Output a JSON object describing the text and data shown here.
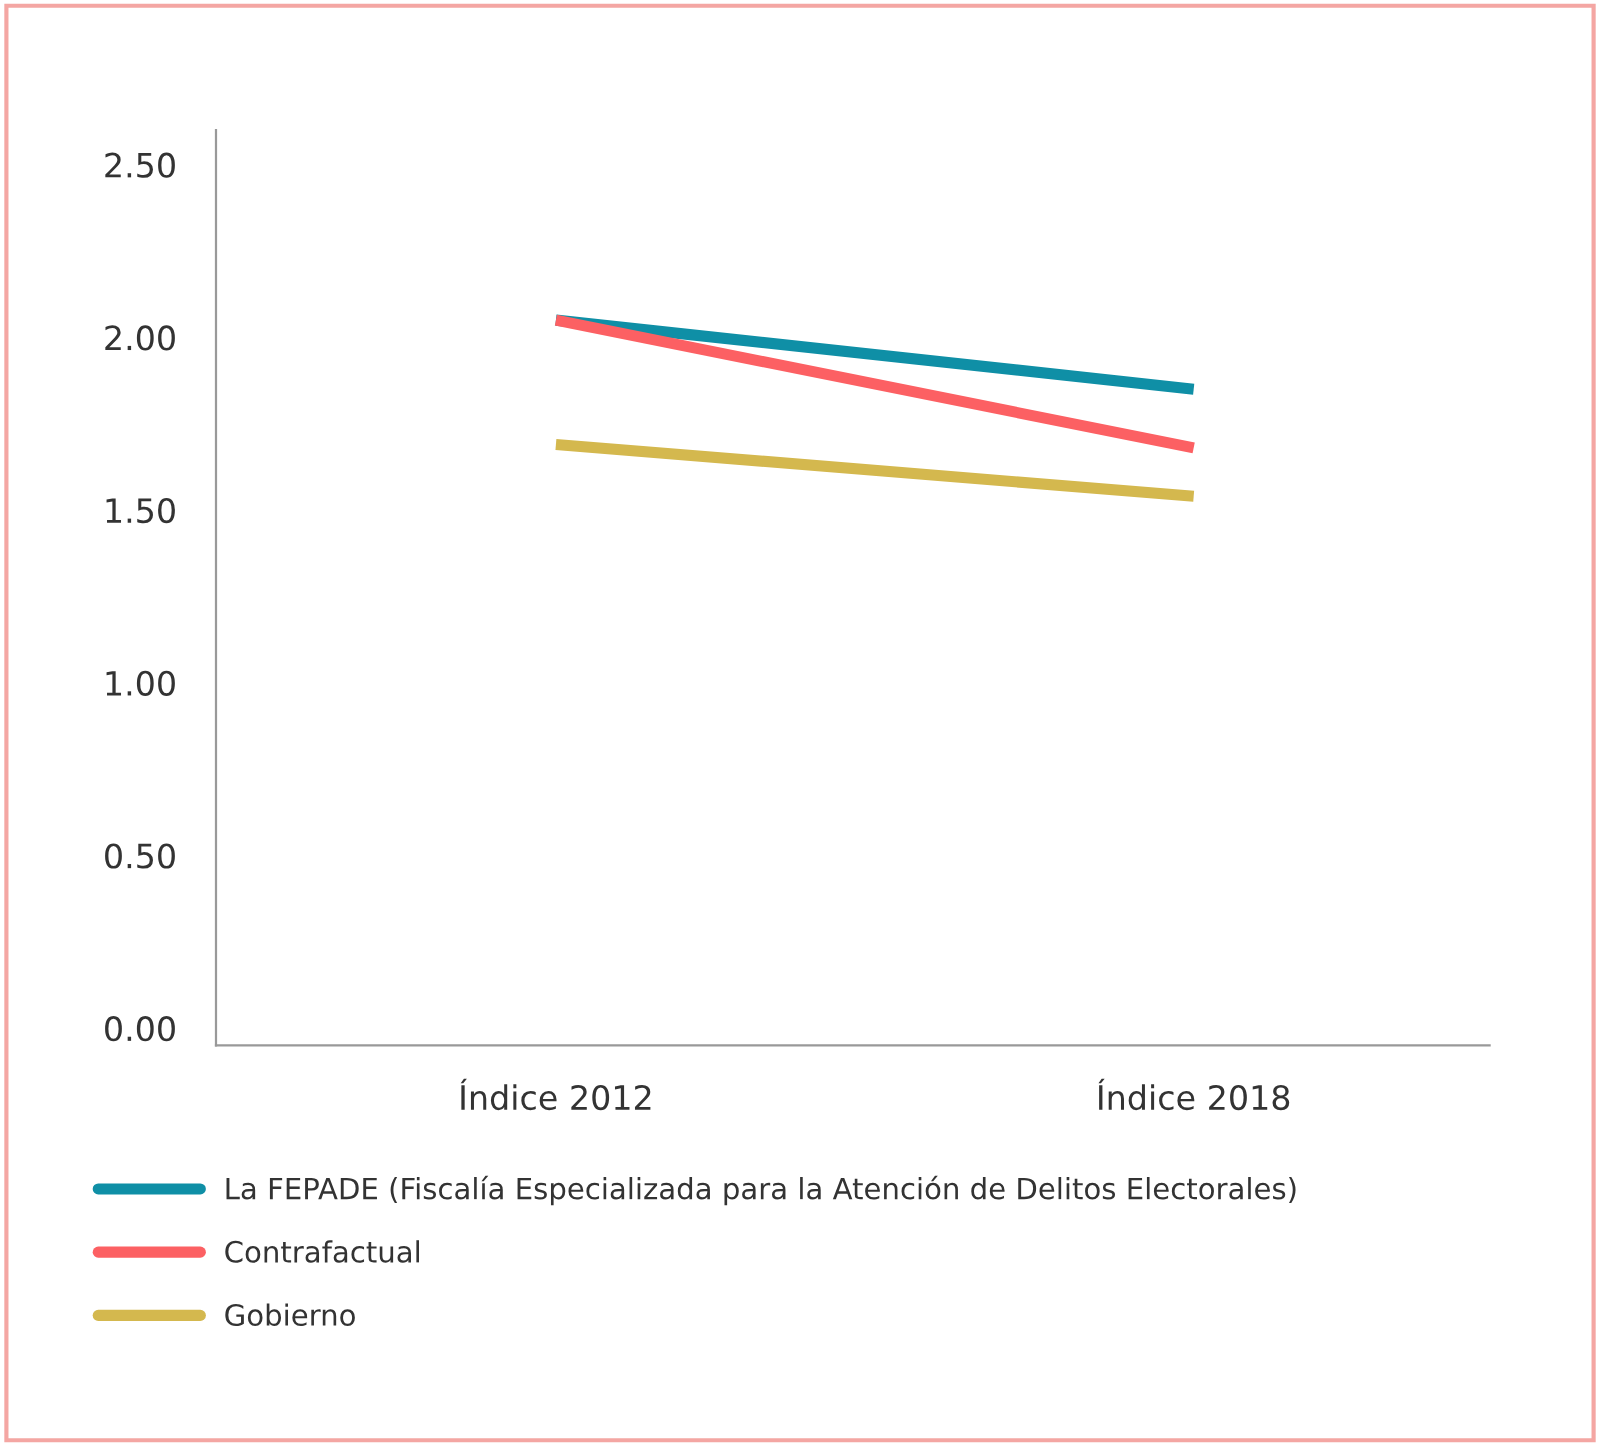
{
  "chart_data": {
    "type": "line",
    "categories": [
      "Índice 2012",
      "Índice 2018"
    ],
    "series": [
      {
        "name": "La FEPADE (Fiscalía Especializada para la Atención de Delitos Electorales)",
        "color": "#0f8fa6",
        "values": [
          2.05,
          1.85
        ]
      },
      {
        "name": "Contrafactual",
        "color": "#fc6063",
        "values": [
          2.05,
          1.68
        ]
      },
      {
        "name": "Gobierno",
        "color": "#d4b84e",
        "values": [
          1.69,
          1.54
        ]
      }
    ],
    "ylim": [
      -0.05,
      2.6
    ],
    "yticks": [
      {
        "value": 0,
        "label": "0.00"
      },
      {
        "value": 0.5,
        "label": "0.50"
      },
      {
        "value": 1,
        "label": "1.00"
      },
      {
        "value": 1.5,
        "label": "1.50"
      },
      {
        "value": 2,
        "label": "2.00"
      },
      {
        "value": 2.5,
        "label": "2.50"
      }
    ],
    "grid": false,
    "legend": "bottom",
    "marker": "none",
    "line_style": "solid"
  }
}
